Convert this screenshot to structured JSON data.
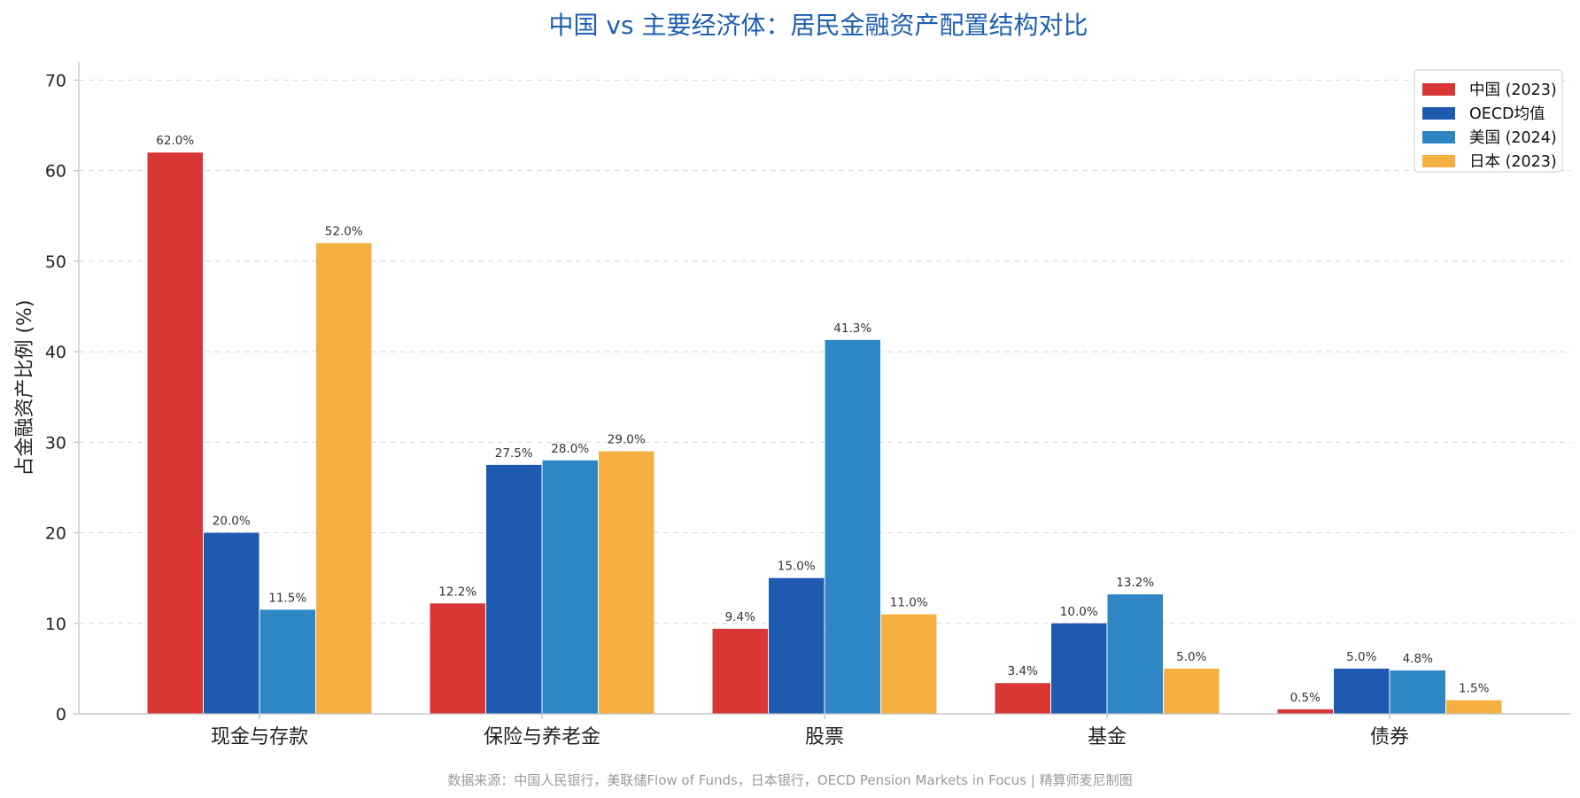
{
  "colors": {
    "series": [
      "#d93636",
      "#1e5bb0",
      "#2e87c4",
      "#f5b041"
    ],
    "title": "#1f5fb0",
    "source": "#9a9a9a"
  },
  "chart_data": {
    "type": "bar",
    "title": "中国 vs 主要经济体：居民金融资产配置结构对比",
    "ylabel": "占金融资产比例 (%)",
    "xlabel": "",
    "ylim": [
      0,
      72
    ],
    "yticks": [
      0,
      10,
      20,
      30,
      40,
      50,
      60,
      70
    ],
    "grid": true,
    "legend_position": "top-right",
    "categories": [
      "现金与存款",
      "保险与养老金",
      "股票",
      "基金",
      "债券"
    ],
    "series": [
      {
        "name": "中国 (2023)",
        "values": [
          62.0,
          12.2,
          9.4,
          3.4,
          0.5
        ]
      },
      {
        "name": "OECD均值",
        "values": [
          20.0,
          27.5,
          15.0,
          10.0,
          5.0
        ]
      },
      {
        "name": "美国 (2024)",
        "values": [
          11.5,
          28.0,
          41.3,
          13.2,
          4.8
        ]
      },
      {
        "name": "日本 (2023)",
        "values": [
          52.0,
          29.0,
          11.0,
          5.0,
          1.5
        ]
      }
    ],
    "source": "数据来源：中国人民银行，美联储Flow of Funds，日本银行，OECD Pension Markets in Focus | 精算师麦尼制图"
  }
}
